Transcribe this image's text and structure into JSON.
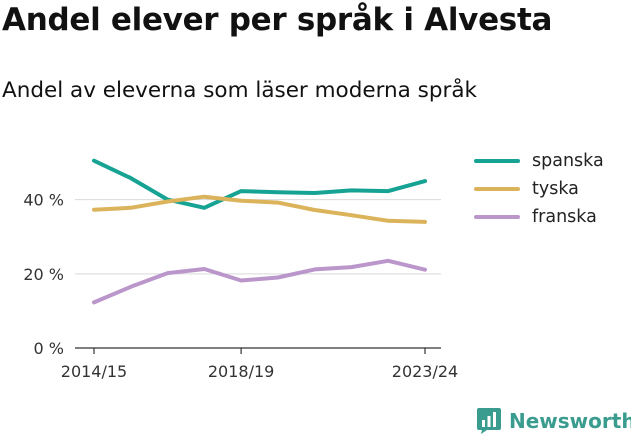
{
  "title": "Andel elever per språk i Alvesta",
  "subtitle": "Andel av eleverna som läser moderna språk",
  "brand": {
    "name": "Newsworthy",
    "icon": "newsworthy-logo-icon",
    "color": "#3a9c8e"
  },
  "chart_data": {
    "type": "line",
    "x": [
      "2014/15",
      "2015/16",
      "2016/17",
      "2017/18",
      "2018/19",
      "2019/20",
      "2020/21",
      "2021/22",
      "2022/23",
      "2023/24"
    ],
    "x_tick_labels": [
      "2014/15",
      "2018/19",
      "2023/24"
    ],
    "y_ticks": [
      0,
      20,
      40
    ],
    "y_tick_labels": [
      "0 %",
      "20 %",
      "40 %"
    ],
    "ylim": [
      0,
      55
    ],
    "grid": true,
    "legend_position": "top-right",
    "series": [
      {
        "name": "spanska",
        "color": "#16a394",
        "values": [
          50.5,
          45.8,
          40.0,
          37.8,
          42.3,
          42.0,
          41.8,
          42.5,
          42.3,
          45.0
        ]
      },
      {
        "name": "tyska",
        "color": "#dbb35b",
        "values": [
          37.3,
          37.8,
          39.5,
          40.8,
          39.7,
          39.2,
          37.2,
          35.8,
          34.3,
          34.0
        ]
      },
      {
        "name": "franska",
        "color": "#bb96cb",
        "values": [
          12.3,
          16.5,
          20.2,
          21.3,
          18.2,
          19.0,
          21.2,
          21.8,
          23.5,
          21.1
        ]
      }
    ]
  }
}
